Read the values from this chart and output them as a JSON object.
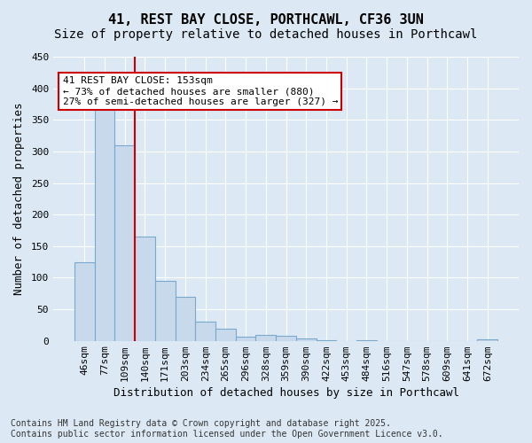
{
  "title_line1": "41, REST BAY CLOSE, PORTHCAWL, CF36 3UN",
  "title_line2": "Size of property relative to detached houses in Porthcawl",
  "xlabel": "Distribution of detached houses by size in Porthcawl",
  "ylabel": "Number of detached properties",
  "categories": [
    "46sqm",
    "77sqm",
    "109sqm",
    "140sqm",
    "171sqm",
    "203sqm",
    "234sqm",
    "265sqm",
    "296sqm",
    "328sqm",
    "359sqm",
    "390sqm",
    "422sqm",
    "453sqm",
    "484sqm",
    "516sqm",
    "547sqm",
    "578sqm",
    "609sqm",
    "641sqm",
    "672sqm"
  ],
  "values": [
    125,
    370,
    310,
    165,
    95,
    70,
    30,
    19,
    7,
    10,
    8,
    4,
    1,
    0,
    1,
    0,
    0,
    0,
    0,
    0,
    3
  ],
  "bar_color": "#c9d9ec",
  "bar_edge_color": "#7aa8cc",
  "vline_x": 2.5,
  "vline_color": "#cc0000",
  "annotation_text": "41 REST BAY CLOSE: 153sqm\n← 73% of detached houses are smaller (880)\n27% of semi-detached houses are larger (327) →",
  "annotation_box_color": "#ffffff",
  "annotation_box_edge": "#cc0000",
  "ylim": [
    0,
    450
  ],
  "yticks": [
    0,
    50,
    100,
    150,
    200,
    250,
    300,
    350,
    400,
    450
  ],
  "background_color": "#dce9f5",
  "plot_bg_color": "#dce9f5",
  "footer_line1": "Contains HM Land Registry data © Crown copyright and database right 2025.",
  "footer_line2": "Contains public sector information licensed under the Open Government Licence v3.0.",
  "title_fontsize": 11,
  "subtitle_fontsize": 10,
  "axis_fontsize": 9,
  "tick_fontsize": 8,
  "annotation_fontsize": 8,
  "footer_fontsize": 7
}
